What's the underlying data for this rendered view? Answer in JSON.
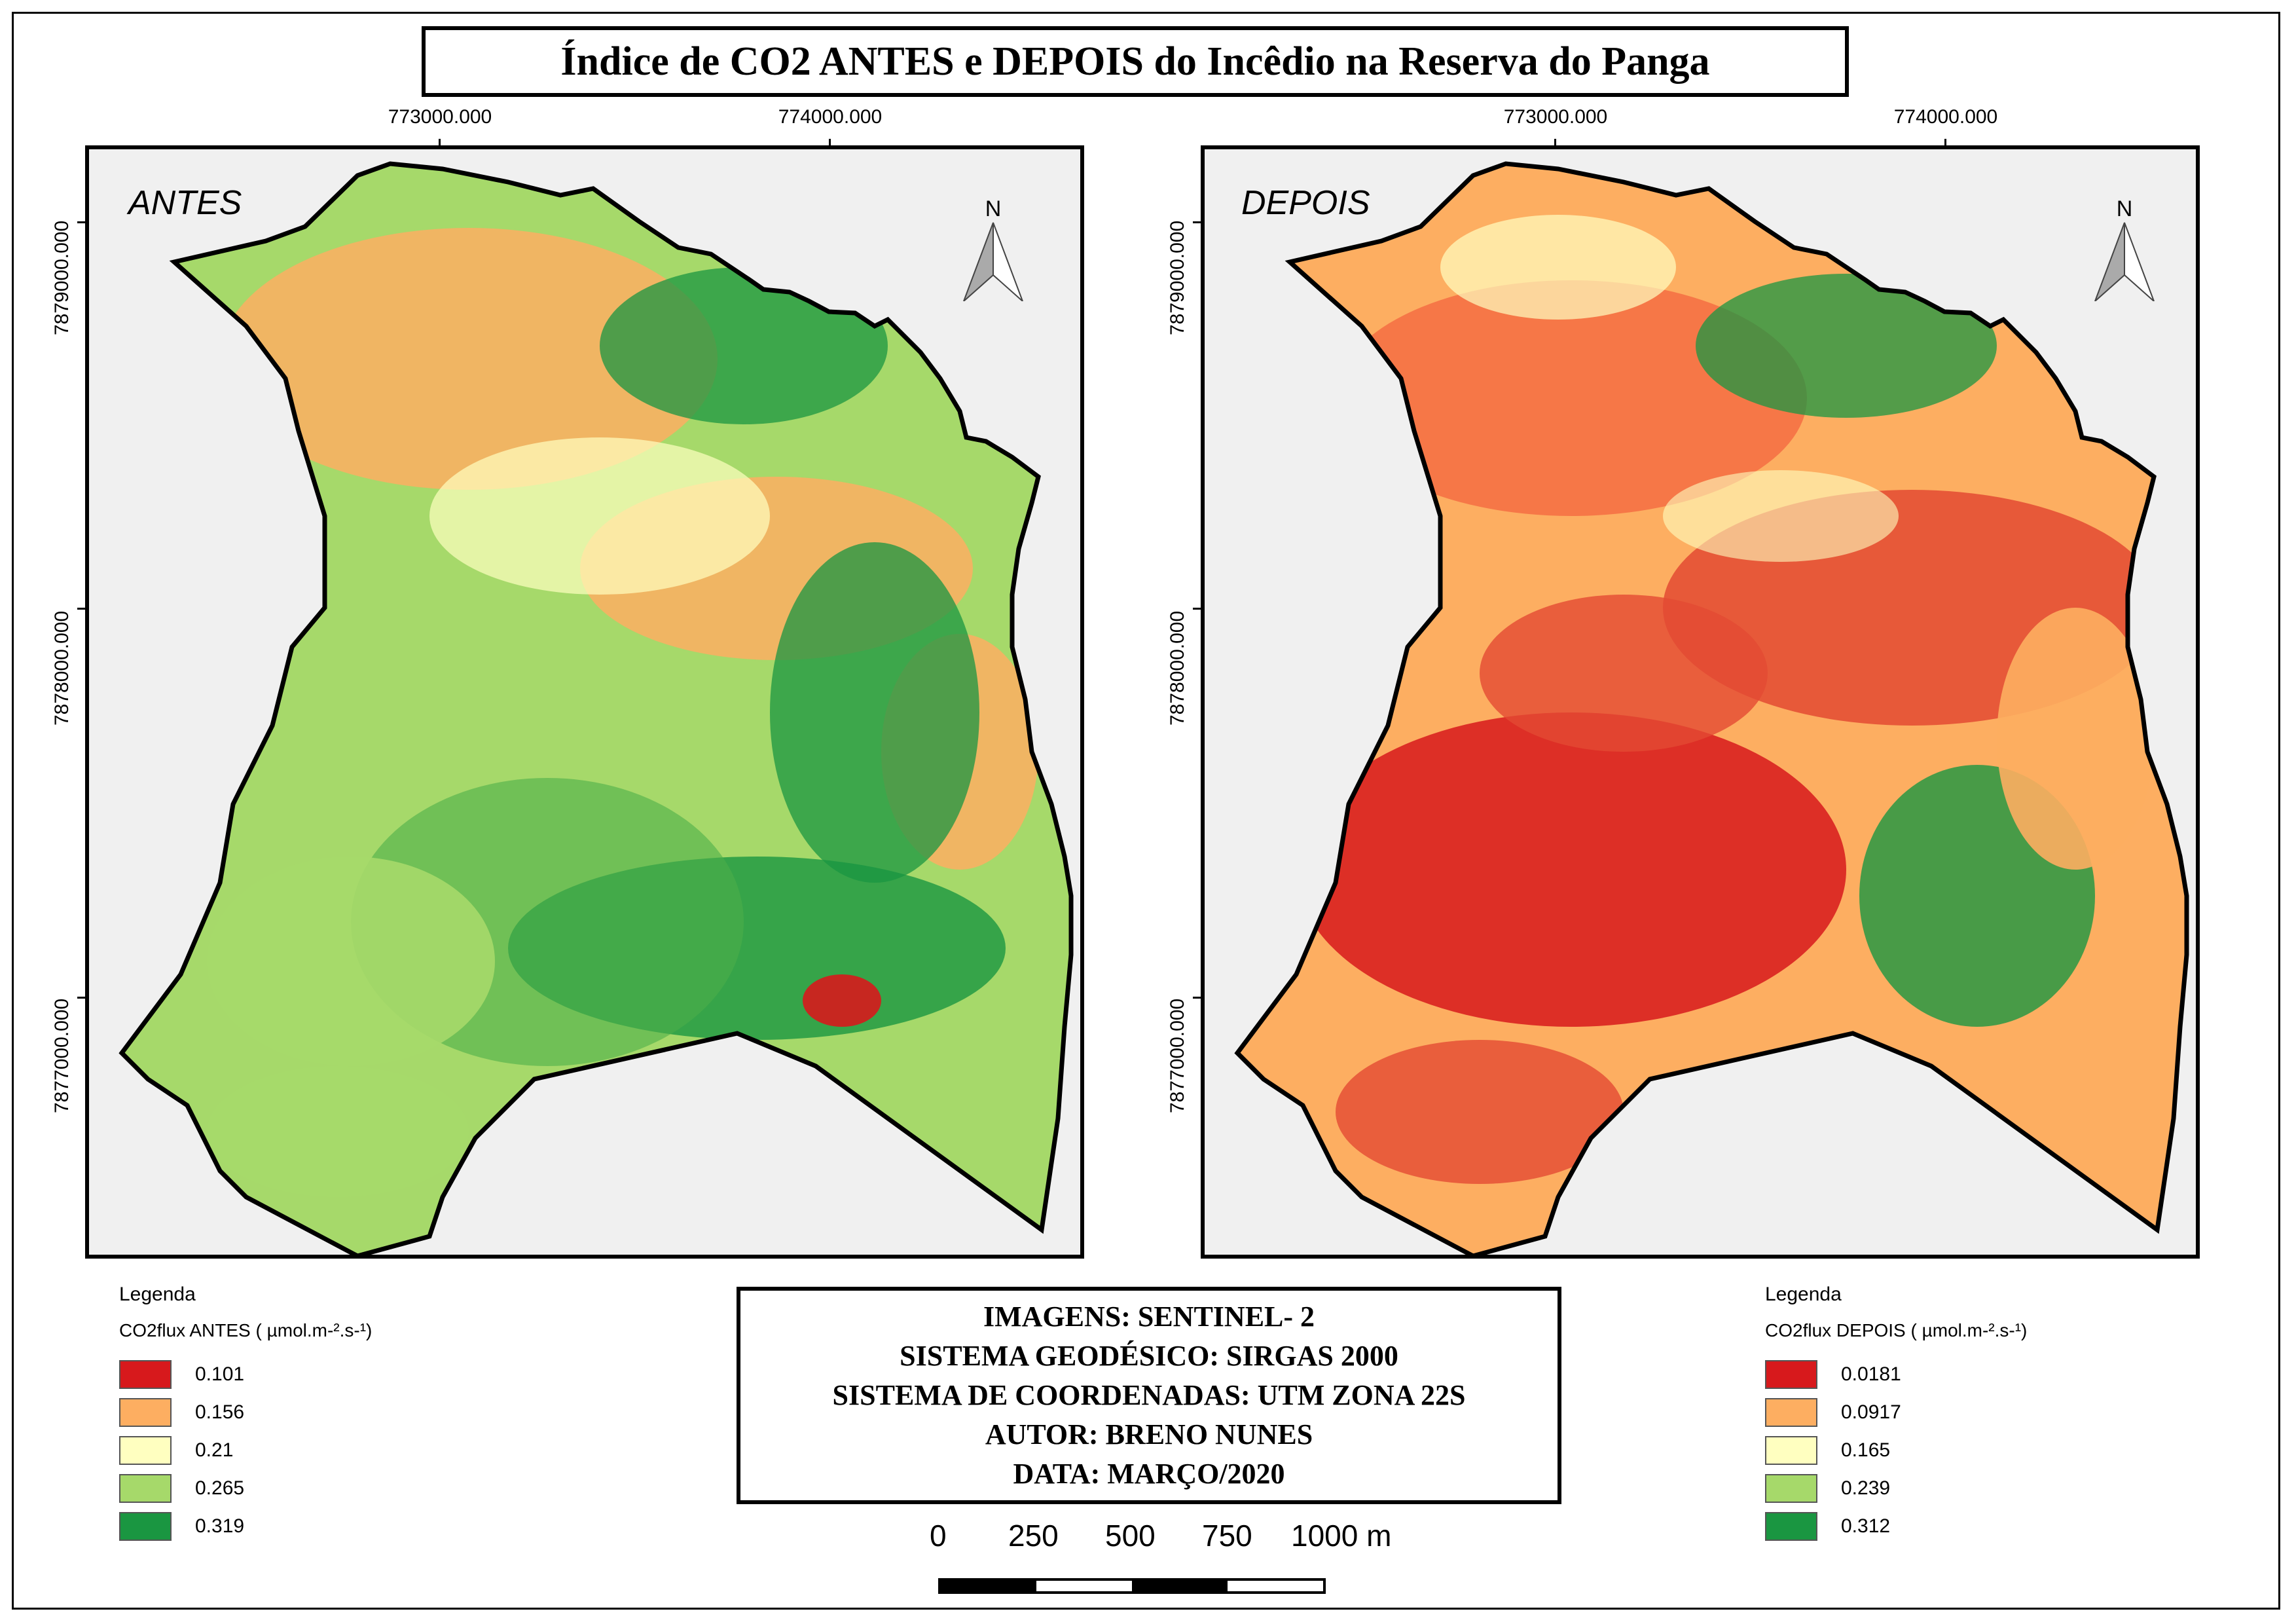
{
  "title": "Índice de CO2 ANTES e DEPOIS do Incêdio na Reserva do Panga",
  "grid": {
    "x_labels": [
      "773000.000",
      "774000.000"
    ],
    "y_labels": [
      "7879000.000",
      "7878000.000",
      "7877000.000"
    ]
  },
  "panels": [
    {
      "id": "antes",
      "label": "ANTES",
      "north": "N",
      "legend": {
        "heading": "Legenda",
        "subtitle": "CO2flux ANTES ( µmol.m-².s-¹)",
        "items": [
          {
            "value": "0.101",
            "color": "#d7191c"
          },
          {
            "value": "0.156",
            "color": "#fdae61"
          },
          {
            "value": "0.21",
            "color": "#ffffc0"
          },
          {
            "value": "0.265",
            "color": "#a6d96a"
          },
          {
            "value": "0.319",
            "color": "#1a9641"
          }
        ]
      }
    },
    {
      "id": "depois",
      "label": "DEPOIS",
      "north": "N",
      "legend": {
        "heading": "Legenda",
        "subtitle": "CO2flux DEPOIS ( µmol.m-².s-¹)",
        "items": [
          {
            "value": "0.0181",
            "color": "#d7191c"
          },
          {
            "value": "0.0917",
            "color": "#fdae61"
          },
          {
            "value": "0.165",
            "color": "#ffffc0"
          },
          {
            "value": "0.239",
            "color": "#a6d96a"
          },
          {
            "value": "0.312",
            "color": "#1a9641"
          }
        ]
      }
    }
  ],
  "info": [
    "IMAGENS: SENTINEL- 2",
    "SISTEMA GEODÉSICO: SIRGAS 2000",
    "SISTEMA DE COORDENADAS: UTM ZONA 22S",
    "AUTOR: BRENO NUNES",
    "DATA: MARÇO/2020"
  ],
  "scale": {
    "labels": [
      "0",
      "250",
      "500",
      "750",
      "1000 m"
    ],
    "segment_colors": [
      "#000000",
      "#ffffff",
      "#000000",
      "#ffffff"
    ]
  }
}
